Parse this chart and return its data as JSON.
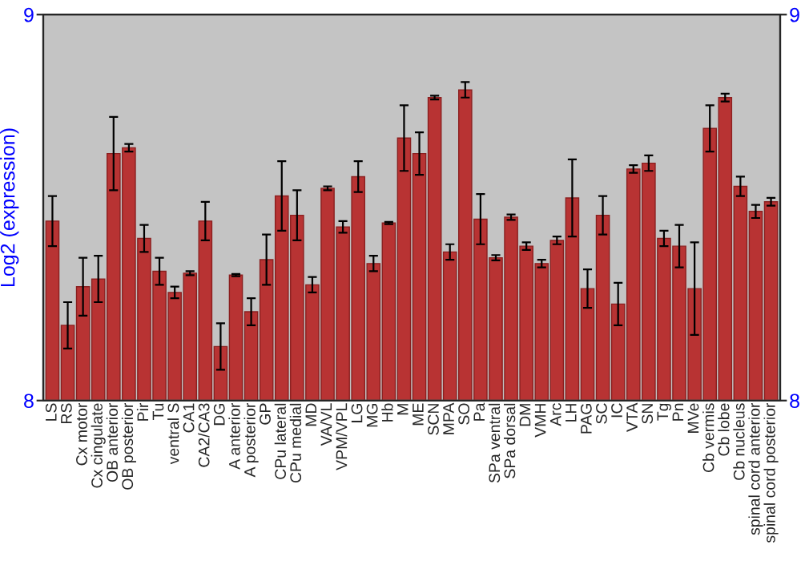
{
  "chart_data": {
    "type": "bar",
    "ylabel": "Log2 (expression)",
    "categories": [
      "LS",
      "RS",
      "Cx motor",
      "Cx cingulate",
      "OB anterior",
      "OB posterior",
      "Pir",
      "Tu",
      "ventral S",
      "CA1",
      "CA2/CA3",
      "DG",
      "A anterior",
      "A posterior",
      "GP",
      "CPu lateral",
      "CPu medial",
      "MD",
      "VA/VL",
      "VPM/VPL",
      "LG",
      "MG",
      "Hb",
      "M",
      "ME",
      "SCN",
      "MPA",
      "SO",
      "Pa",
      "SPa ventral",
      "SPa dorsal",
      "DM",
      "VMH",
      "Arc",
      "LH",
      "PAG",
      "SC",
      "IC",
      "VTA",
      "SN",
      "Tg",
      "Pn",
      "MVe",
      "Cb vermis",
      "Cb lobe",
      "Cb nucleus",
      "spinal cord anterior",
      "spinal cord posterior"
    ],
    "values": [
      8.465,
      8.195,
      8.295,
      8.315,
      8.64,
      8.655,
      8.42,
      8.335,
      8.28,
      8.33,
      8.465,
      8.14,
      8.325,
      8.23,
      8.365,
      8.53,
      8.48,
      8.3,
      8.55,
      8.45,
      8.58,
      8.355,
      8.46,
      8.68,
      8.64,
      8.785,
      8.385,
      8.805,
      8.47,
      8.37,
      8.475,
      8.4,
      8.355,
      8.415,
      8.525,
      8.29,
      8.48,
      8.25,
      8.6,
      8.615,
      8.42,
      8.4,
      8.29,
      8.705,
      8.785,
      8.555,
      8.49,
      8.515
    ],
    "errors": [
      0.065,
      0.06,
      0.075,
      0.06,
      0.095,
      0.01,
      0.035,
      0.035,
      0.015,
      0.005,
      0.05,
      0.06,
      0.003,
      0.035,
      0.065,
      0.09,
      0.065,
      0.02,
      0.005,
      0.015,
      0.04,
      0.02,
      0.003,
      0.085,
      0.055,
      0.005,
      0.02,
      0.02,
      0.065,
      0.007,
      0.007,
      0.01,
      0.01,
      0.01,
      0.1,
      0.05,
      0.05,
      0.055,
      0.01,
      0.02,
      0.02,
      0.055,
      0.12,
      0.06,
      0.01,
      0.025,
      0.017,
      0.01
    ],
    "color": "#b83333",
    "ylim": [
      8,
      9
    ],
    "yticks": [
      8,
      9
    ],
    "y2lim": [
      8,
      9
    ],
    "y2ticks": [
      8,
      9
    ],
    "grid": false,
    "legend": false
  }
}
